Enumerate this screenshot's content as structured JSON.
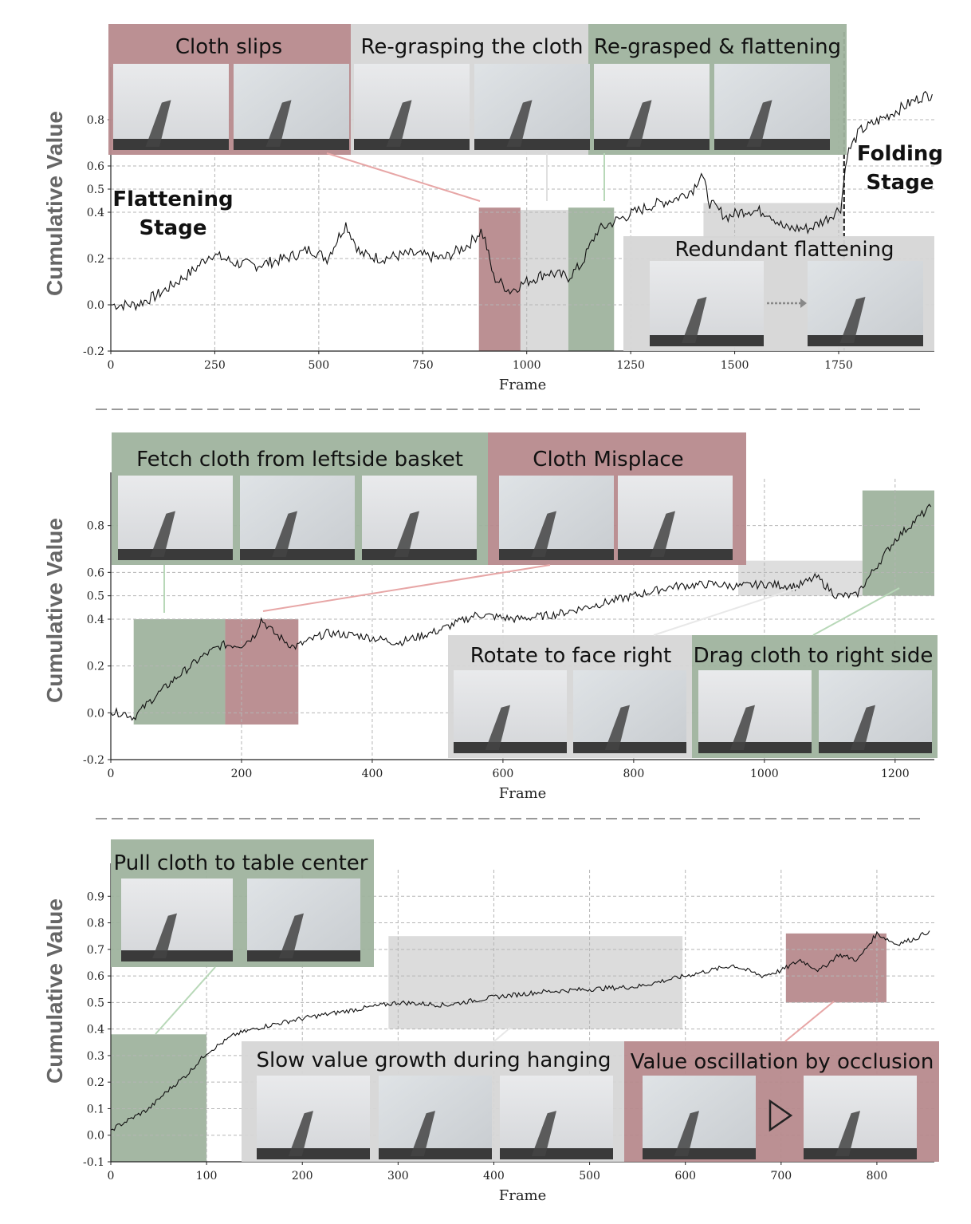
{
  "chart_data": [
    {
      "type": "line",
      "title": "",
      "xlabel": "Frame",
      "ylabel": "Cumulative Value",
      "xlim": [
        0,
        1980
      ],
      "ylim": [
        -0.2,
        1.0
      ],
      "xticks": [
        0,
        250,
        500,
        750,
        1000,
        1250,
        1500,
        1750
      ],
      "yticks": [
        -0.2,
        0.0,
        0.2,
        0.4,
        0.5,
        0.6,
        0.8
      ],
      "ytick_labels": [
        "-0.2",
        "0.0",
        "0.2",
        "0.4",
        "0.5",
        "0.6",
        "0.8"
      ],
      "grid": true,
      "series": [
        {
          "x": [
            0,
            60,
            110,
            160,
            200,
            240,
            300,
            350,
            420,
            480,
            520,
            565,
            600,
            650,
            720,
            800,
            860,
            890,
            900,
            920,
            960,
            1000,
            1050,
            1100,
            1130,
            1170,
            1210,
            1260,
            1300,
            1360,
            1400,
            1420,
            1440,
            1480,
            1530,
            1580,
            1620,
            1680,
            1720,
            1755,
            1770,
            1800,
            1850,
            1900,
            1950,
            1975
          ],
          "y": [
            0.0,
            0.0,
            0.04,
            0.1,
            0.15,
            0.22,
            0.18,
            0.17,
            0.2,
            0.24,
            0.2,
            0.35,
            0.22,
            0.2,
            0.22,
            0.2,
            0.26,
            0.32,
            0.28,
            0.12,
            0.06,
            0.1,
            0.14,
            0.12,
            0.17,
            0.32,
            0.36,
            0.4,
            0.43,
            0.46,
            0.5,
            0.57,
            0.44,
            0.38,
            0.41,
            0.4,
            0.33,
            0.33,
            0.37,
            0.42,
            0.65,
            0.75,
            0.8,
            0.85,
            0.9,
            0.91
          ]
        }
      ]
    },
    {
      "type": "line",
      "title": "",
      "xlabel": "Frame",
      "ylabel": "Cumulative Value",
      "xlim": [
        0,
        1260
      ],
      "ylim": [
        -0.2,
        1.0
      ],
      "xticks": [
        0,
        200,
        400,
        600,
        800,
        1000,
        1200
      ],
      "yticks": [
        -0.2,
        0.0,
        0.2,
        0.4,
        0.5,
        0.6,
        0.8
      ],
      "ytick_labels": [
        "-0.2",
        "0.0",
        "0.2",
        "0.4",
        "0.5",
        "0.6",
        "0.8"
      ],
      "grid": true,
      "series": [
        {
          "x": [
            0,
            20,
            35,
            60,
            100,
            140,
            170,
            200,
            220,
            230,
            250,
            280,
            330,
            380,
            440,
            500,
            560,
            620,
            680,
            740,
            800,
            860,
            920,
            960,
            1000,
            1050,
            1080,
            1110,
            1140,
            1170,
            1200,
            1230,
            1255
          ],
          "y": [
            0.0,
            0.0,
            -0.02,
            0.05,
            0.15,
            0.24,
            0.29,
            0.29,
            0.33,
            0.4,
            0.34,
            0.28,
            0.34,
            0.33,
            0.3,
            0.35,
            0.42,
            0.4,
            0.42,
            0.46,
            0.5,
            0.54,
            0.55,
            0.54,
            0.55,
            0.54,
            0.58,
            0.5,
            0.5,
            0.62,
            0.74,
            0.82,
            0.88
          ]
        }
      ]
    },
    {
      "type": "line",
      "title": "",
      "xlabel": "Frame",
      "ylabel": "Cumulative Value",
      "xlim": [
        0,
        860
      ],
      "ylim": [
        -0.1,
        1.0
      ],
      "xticks": [
        0,
        100,
        200,
        300,
        400,
        500,
        600,
        700,
        800
      ],
      "yticks": [
        -0.1,
        0.0,
        0.1,
        0.2,
        0.3,
        0.4,
        0.5,
        0.6,
        0.7,
        0.8,
        0.9
      ],
      "ytick_labels": [
        "-0.1",
        "0.0",
        "0.1",
        "0.2",
        "0.3",
        "0.4",
        "0.5",
        "0.6",
        "0.7",
        "0.8",
        "0.9"
      ],
      "grid": true,
      "series": [
        {
          "x": [
            0,
            20,
            40,
            60,
            80,
            100,
            130,
            160,
            200,
            250,
            300,
            350,
            400,
            450,
            500,
            550,
            600,
            650,
            680,
            700,
            720,
            740,
            760,
            780,
            800,
            820,
            840,
            855
          ],
          "y": [
            0.02,
            0.06,
            0.1,
            0.17,
            0.23,
            0.31,
            0.38,
            0.41,
            0.44,
            0.47,
            0.5,
            0.49,
            0.52,
            0.54,
            0.55,
            0.56,
            0.6,
            0.64,
            0.6,
            0.62,
            0.66,
            0.62,
            0.68,
            0.66,
            0.76,
            0.72,
            0.74,
            0.77
          ]
        }
      ]
    }
  ],
  "panels": [
    {
      "ytick_labels": [
        "-0.2",
        "0.0",
        "0.2",
        "0.4",
        "0.5",
        "0.6",
        "0.8"
      ],
      "xtick_labels": [
        "0",
        "250",
        "500",
        "750",
        "1000",
        "1250",
        "1500",
        "1750"
      ],
      "xlabel": "Frame",
      "ylabel": "Cumulative Value",
      "stages": [
        "Flattening",
        "Stage",
        "Folding",
        "Stage"
      ],
      "annotations": [
        "Cloth slips",
        "Re-grasping the cloth",
        "Re-grasped & flattening",
        "Redundant flattening"
      ]
    },
    {
      "ytick_labels": [
        "-0.2",
        "0.0",
        "0.2",
        "0.4",
        "0.5",
        "0.6",
        "0.8"
      ],
      "xtick_labels": [
        "0",
        "200",
        "400",
        "600",
        "800",
        "1000",
        "1200"
      ],
      "xlabel": "Frame",
      "ylabel": "Cumulative Value",
      "annotations": [
        "Fetch cloth from leftside basket",
        "Cloth Misplace",
        "Rotate to face right",
        "Drag cloth to right side"
      ]
    },
    {
      "ytick_labels": [
        "-0.1",
        "0.0",
        "0.1",
        "0.2",
        "0.3",
        "0.4",
        "0.5",
        "0.6",
        "0.7",
        "0.8",
        "0.9"
      ],
      "xtick_labels": [
        "0",
        "100",
        "200",
        "300",
        "400",
        "500",
        "600",
        "700",
        "800"
      ],
      "xlabel": "Frame",
      "ylabel": "Cumulative Value",
      "annotations": [
        "Pull cloth to table center",
        "Slow value growth during hanging",
        "Value oscillation by occlusion"
      ]
    }
  ],
  "colors": {
    "green": "#9fb39e",
    "red": "#b78a8d",
    "gray": "#d6d6d6",
    "line": "#111111",
    "grid": "#b5b5b5"
  }
}
